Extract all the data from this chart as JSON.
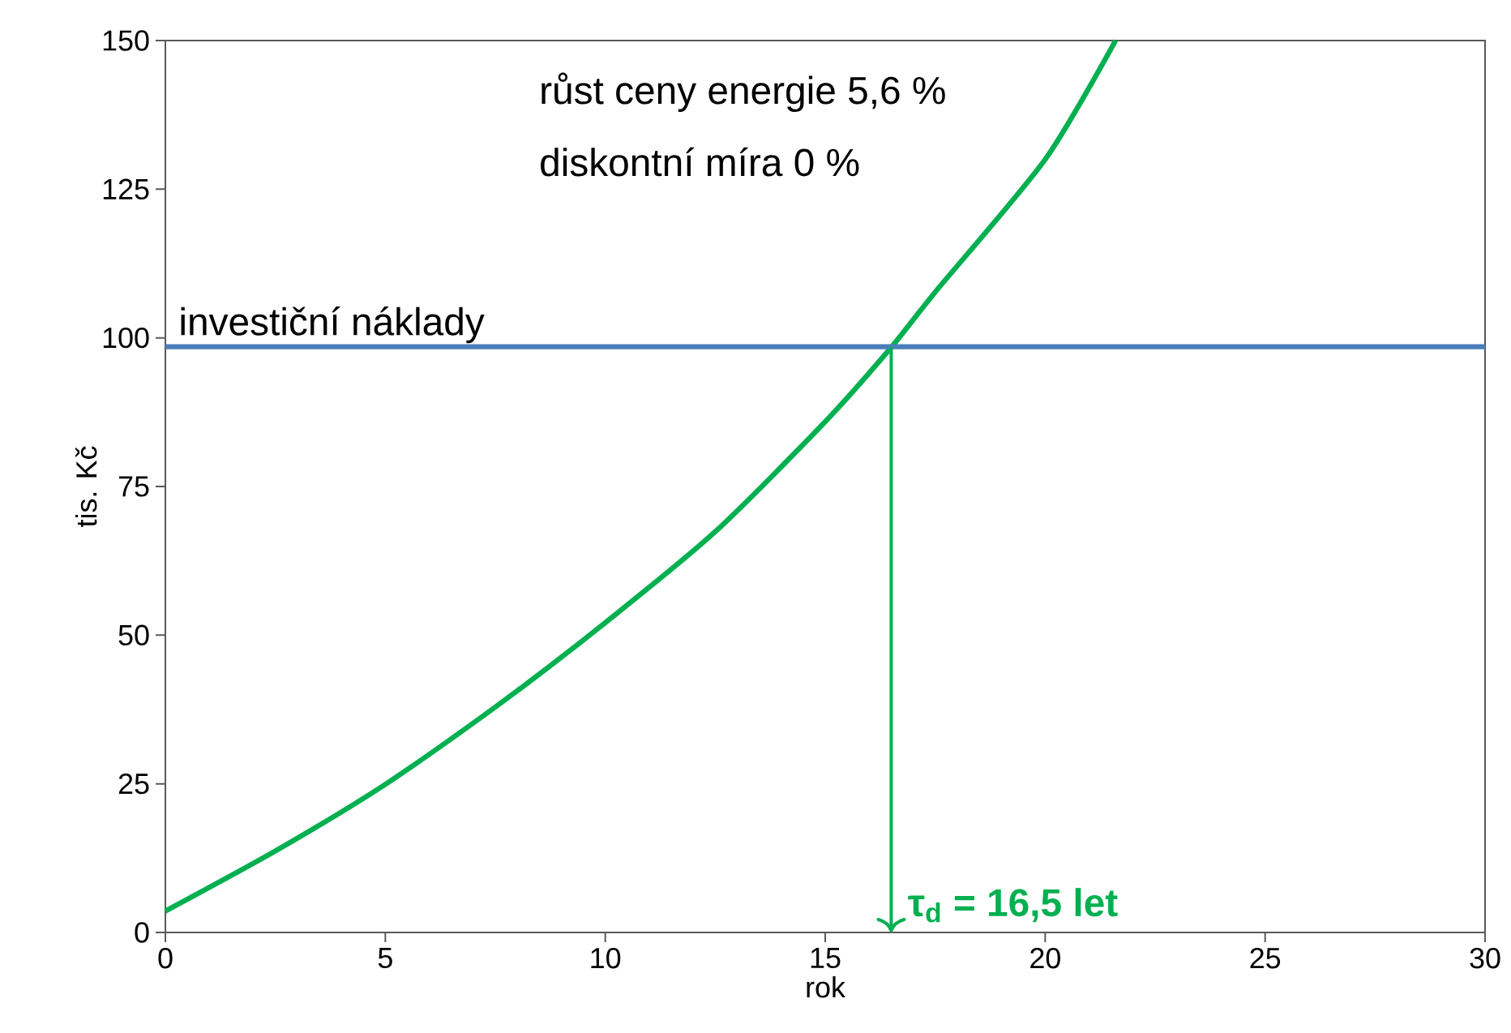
{
  "chart_data": {
    "type": "line",
    "xlabel": "rok",
    "ylabel": "tis. Kč",
    "xlim": [
      0,
      30
    ],
    "ylim": [
      0,
      150
    ],
    "xticks": [
      0,
      5,
      10,
      15,
      20,
      25,
      30
    ],
    "yticks": [
      0,
      25,
      50,
      75,
      100,
      125,
      150
    ],
    "series": [
      {
        "color": "#00b050",
        "x": [
          0,
          2.5,
          5,
          7.5,
          10,
          12.5,
          15,
          16.5,
          17.5,
          20,
          21.6
        ],
        "values": [
          3.6,
          13.7,
          24.9,
          37.9,
          52.1,
          67.4,
          85.9,
          98.4,
          107.7,
          130,
          150
        ]
      }
    ],
    "ref_lines": [
      {
        "axis": "y",
        "value": 98.5,
        "label": "investiční náklady",
        "color": "#4a7ebb"
      },
      {
        "axis": "x",
        "value": 16.5,
        "color": "#00b050"
      }
    ],
    "annotations": [
      "růst ceny energie 5,6 %",
      "diskontní míra 0 %",
      "τ$_{d}$ = 16,5 let"
    ],
    "grid": false
  }
}
